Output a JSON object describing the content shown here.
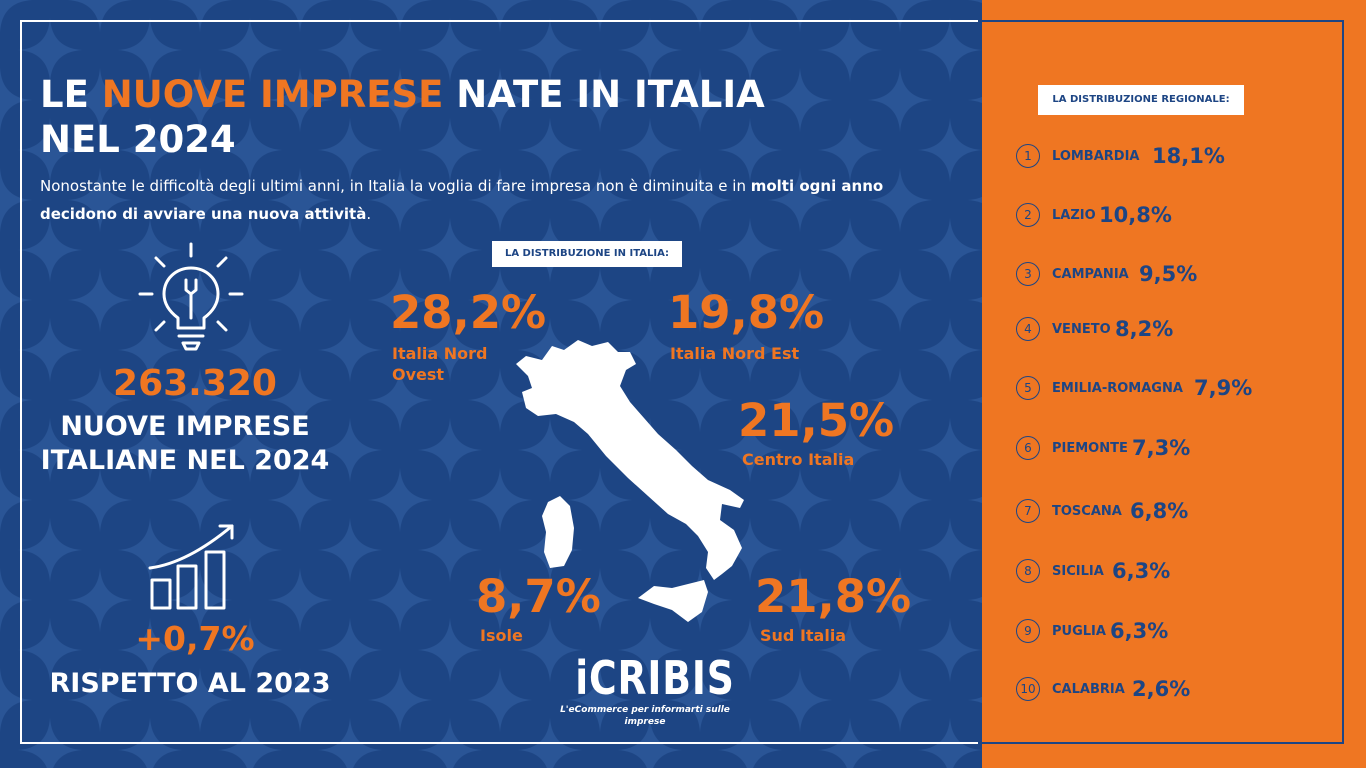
{
  "title": {
    "part1": "LE ",
    "highlight": "NUOVE IMPRESE",
    "part2": " NATE IN ITALIA",
    "line2": "NEL 2024"
  },
  "intro": {
    "normal": "Nonostante le difficoltà degli ultimi anni, in Italia la voglia di fare impresa non è diminuita e in ",
    "bold": "molti ogni anno decidono di avviare una nuova attività",
    "end": "."
  },
  "stats": {
    "total_value": "263.320",
    "total_label_line1": "NUOVE IMPRESE",
    "total_label_line2": "ITALIANE NEL 2024",
    "growth_value": "+0,7%",
    "growth_label": "RISPETTO AL 2023"
  },
  "italy": {
    "badge": "LA DISTRIBUZIONE IN ITALIA:",
    "areas": [
      {
        "value": "28,2%",
        "label_line1": "Italia Nord",
        "label_line2": "Ovest"
      },
      {
        "value": "19,8%",
        "label_line1": "Italia Nord Est",
        "label_line2": ""
      },
      {
        "value": "21,5%",
        "label_line1": "Centro Italia",
        "label_line2": ""
      },
      {
        "value": "8,7%",
        "label_line1": "Isole",
        "label_line2": ""
      },
      {
        "value": "21,8%",
        "label_line1": "Sud Italia",
        "label_line2": ""
      }
    ]
  },
  "regional": {
    "badge": "LA DISTRIBUZIONE REGIONALE:",
    "items": [
      {
        "rank": "1",
        "name": "LOMBARDIA",
        "value": "18,1%"
      },
      {
        "rank": "2",
        "name": "LAZIO",
        "value": "10,8%"
      },
      {
        "rank": "3",
        "name": "CAMPANIA",
        "value": "9,5%"
      },
      {
        "rank": "4",
        "name": "VENETO",
        "value": "8,2%"
      },
      {
        "rank": "5",
        "name": "EMILIA-ROMAGNA",
        "value": "7,9%"
      },
      {
        "rank": "6",
        "name": "PIEMONTE",
        "value": "7,3%"
      },
      {
        "rank": "7",
        "name": "TOSCANA",
        "value": "6,8%"
      },
      {
        "rank": "8",
        "name": "SICILIA",
        "value": "6,3%"
      },
      {
        "rank": "9",
        "name": "PUGLIA",
        "value": "6,3%"
      },
      {
        "rank": "10",
        "name": "CALABRIA",
        "value": "2,6%"
      }
    ]
  },
  "brand": {
    "name": "iCRIBIS",
    "tagline": "L'eCommerce per informarti sulle imprese"
  },
  "icons": {
    "lightbulb": "lightbulb-wrench-icon",
    "growth": "growth-chart-icon",
    "map": "italy-map"
  },
  "colors": {
    "navy": "#1d4584",
    "orange": "#ef7622",
    "white": "#ffffff"
  }
}
